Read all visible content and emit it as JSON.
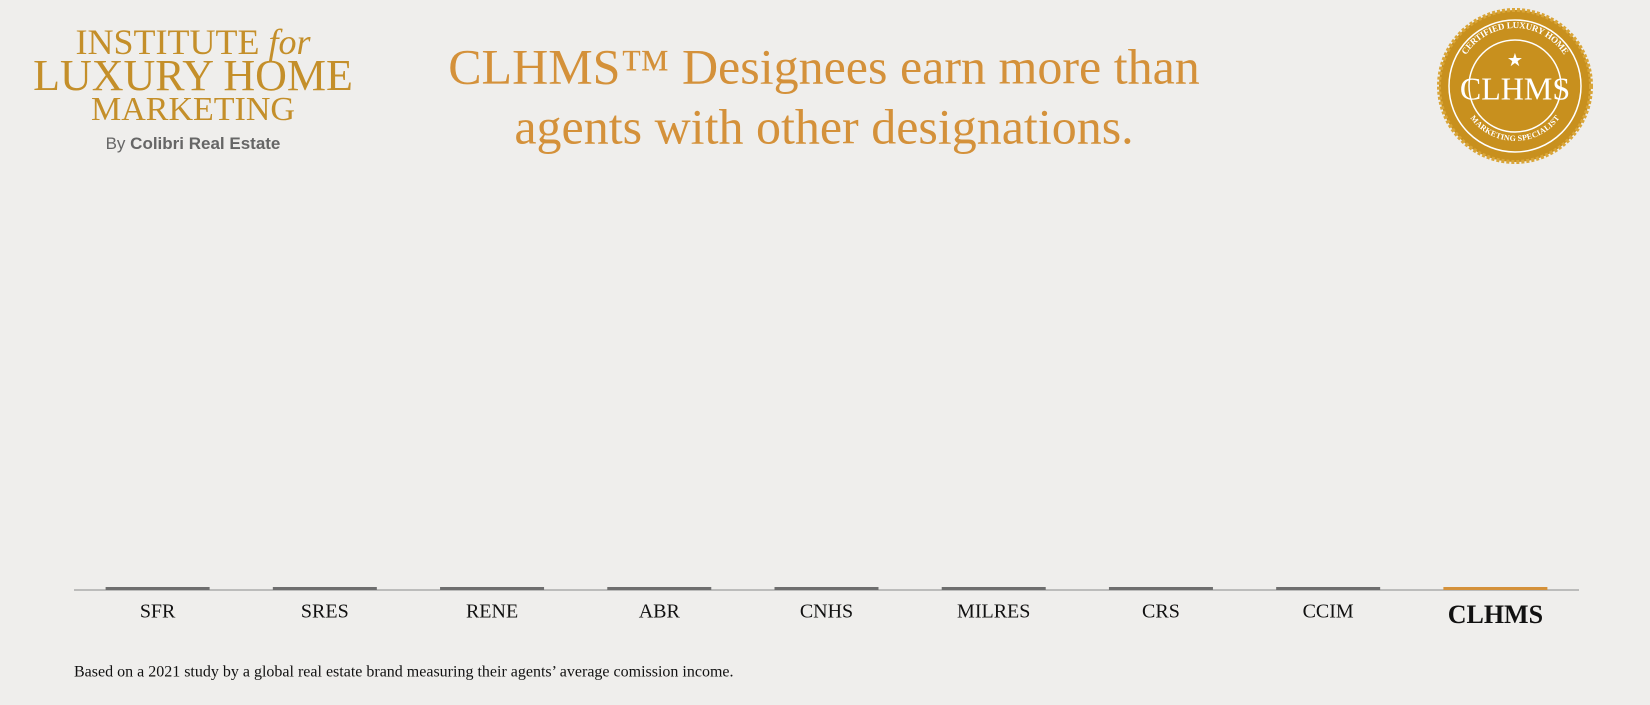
{
  "logo": {
    "line1": "INSTITUTE",
    "line1_italic": "for",
    "line2": "LUXURY HOME",
    "line3": "MARKETING",
    "byline_prefix": "By",
    "byline": "Colibri Real Estate"
  },
  "title": {
    "lines": [
      "CLHMS™ Designees earn more than",
      "agents with other designations."
    ]
  },
  "seal": {
    "top_text": "CERTIFIED LUXURY HOME",
    "center": "CLHMS",
    "bottom_text": "MARKETING SPECIALIST"
  },
  "chart": {
    "categories": [
      "SFR",
      "SRES",
      "RENE",
      "ABR",
      "CNHS",
      "MILRES",
      "CRS",
      "CCIM",
      "CLHMS"
    ],
    "bar_color": "#6e6e6e",
    "highlight_color": "#d4913a"
  },
  "footnote": "Based on a 2021 study by a global real estate brand measuring their agents’ average comission income."
}
